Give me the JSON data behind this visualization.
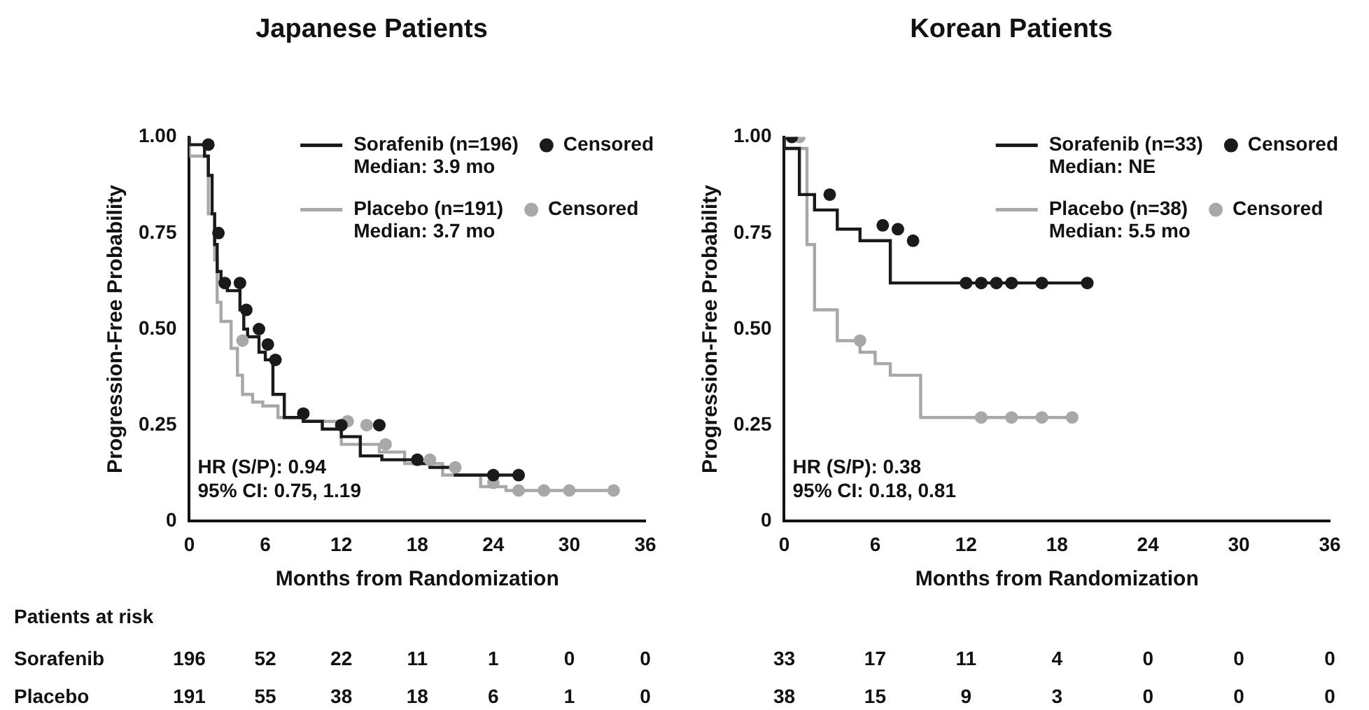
{
  "chart_data": [
    {
      "type": "step",
      "title": "Japanese Patients",
      "xlabel": "Months from Randomization",
      "ylabel": "Progression-Free Probability",
      "xlim": [
        0,
        36
      ],
      "xticks": [
        0,
        6,
        12,
        18,
        24,
        30,
        36
      ],
      "ylim": [
        0,
        1
      ],
      "yticks": [
        {
          "value": 0,
          "label": "0"
        },
        {
          "value": 0.25,
          "label": "0.25"
        },
        {
          "value": 0.5,
          "label": "0.50"
        },
        {
          "value": 0.75,
          "label": "0.75"
        },
        {
          "value": 1,
          "label": "1.00"
        }
      ],
      "grid": false,
      "legend": "top right",
      "marker": "circle",
      "line_style": "solid",
      "series": [
        {
          "name": "Sorafenib (n=196)\nMedian: 3.9 mo",
          "marker": "none",
          "color": "#1a1a1a",
          "x": [
            0,
            1.2,
            1.5,
            1.8,
            2,
            2.2,
            2.5,
            3,
            4,
            4.3,
            4.6,
            5.5,
            6,
            6.6,
            7.5,
            9,
            10.5,
            12,
            13.5,
            15.2,
            18,
            19,
            21,
            22.5,
            26
          ],
          "values": [
            1,
            0.98,
            0.95,
            0.9,
            0.8,
            0.72,
            0.65,
            0.62,
            0.6,
            0.55,
            0.5,
            0.48,
            0.44,
            0.42,
            0.33,
            0.27,
            0.26,
            0.24,
            0.22,
            0.17,
            0.16,
            0.15,
            0.14,
            0.12,
            0.12
          ]
        },
        {
          "name": "Placebo (n=191)\nMedian: 3.7 mo",
          "marker": "none",
          "color": "#a8a8a8",
          "x": [
            0,
            1.5,
            2,
            2.2,
            2.5,
            3.3,
            3.8,
            4.2,
            5,
            5.8,
            7,
            9,
            12,
            15,
            17,
            20,
            23,
            25,
            27,
            33.5
          ],
          "values": [
            1,
            0.95,
            0.8,
            0.68,
            0.57,
            0.52,
            0.45,
            0.38,
            0.33,
            0.31,
            0.3,
            0.27,
            0.26,
            0.2,
            0.18,
            0.15,
            0.12,
            0.09,
            0.08,
            0.08
          ]
        },
        {
          "name": "Censored",
          "type": "scatter",
          "color": "#1a1a1a",
          "x": [
            1.5,
            2.3,
            2.8,
            4,
            4.5,
            5.5,
            6.2,
            6.8,
            9,
            12,
            15,
            18,
            24,
            26
          ],
          "values": [
            0.98,
            0.75,
            0.62,
            0.62,
            0.55,
            0.5,
            0.46,
            0.42,
            0.28,
            0.25,
            0.25,
            0.16,
            0.12,
            0.12
          ]
        },
        {
          "name": "Censored",
          "type": "scatter",
          "color": "#a8a8a8",
          "x": [
            4.2,
            12.5,
            14,
            15.5,
            19,
            21,
            24,
            26,
            28,
            30,
            33.5
          ],
          "values": [
            0.47,
            0.26,
            0.25,
            0.2,
            0.16,
            0.14,
            0.1,
            0.08,
            0.08,
            0.08,
            0.08
          ]
        }
      ],
      "annotations": [
        "HR (S/P): 0.94",
        "95% CI: 0.75, 1.19",
        "Patients at risk",
        "Sorafenib",
        "Placebo",
        "196",
        "52",
        "22",
        "11",
        "1",
        "0",
        "0",
        "191",
        "55",
        "38",
        "18",
        "6",
        "1",
        "0"
      ]
    },
    {
      "type": "step",
      "title": "Korean Patients",
      "xlabel": "Months from Randomization",
      "ylabel": "Progression-Free Probability",
      "xlim": [
        0,
        36
      ],
      "xticks": [
        0,
        6,
        12,
        18,
        24,
        30,
        36
      ],
      "ylim": [
        0,
        1
      ],
      "yticks": [
        {
          "value": 0,
          "label": "0"
        },
        {
          "value": 0.25,
          "label": "0.25"
        },
        {
          "value": 0.5,
          "label": "0.50"
        },
        {
          "value": 0.75,
          "label": "0.75"
        },
        {
          "value": 1,
          "label": "1.00"
        }
      ],
      "grid": false,
      "legend": "top right",
      "marker": "circle",
      "line_style": "solid",
      "series": [
        {
          "name": "Sorafenib (n=33)\nMedian: NE",
          "marker": "none",
          "color": "#1a1a1a",
          "x": [
            0,
            1,
            2,
            3.5,
            5,
            7,
            9.5,
            20
          ],
          "values": [
            1,
            0.97,
            0.85,
            0.81,
            0.76,
            0.73,
            0.62,
            0.62
          ]
        },
        {
          "name": "Placebo (n=38)\nMedian: 5.5 mo",
          "marker": "none",
          "color": "#a8a8a8",
          "x": [
            0,
            1.5,
            2,
            3.5,
            5,
            6,
            7,
            9,
            11,
            19
          ],
          "values": [
            1,
            0.97,
            0.72,
            0.55,
            0.47,
            0.44,
            0.41,
            0.38,
            0.27,
            0.27
          ]
        },
        {
          "name": "Censored",
          "type": "scatter",
          "color": "#1a1a1a",
          "x": [
            0.5,
            3,
            6.5,
            7.5,
            8.5,
            12,
            13,
            14,
            15,
            17,
            20
          ],
          "values": [
            1,
            0.85,
            0.77,
            0.76,
            0.73,
            0.62,
            0.62,
            0.62,
            0.62,
            0.62,
            0.62
          ]
        },
        {
          "name": "Censored",
          "type": "scatter",
          "color": "#a8a8a8",
          "x": [
            1,
            5,
            13,
            15,
            17,
            19
          ],
          "values": [
            1,
            0.47,
            0.27,
            0.27,
            0.27,
            0.27
          ]
        }
      ],
      "annotations": [
        "HR (S/P): 0.38",
        "95% CI: 0.18, 0.81",
        "33",
        "17",
        "11",
        "4",
        "0",
        "0",
        "0",
        "38",
        "15",
        "9",
        "3",
        "0",
        "0",
        "0"
      ]
    }
  ]
}
